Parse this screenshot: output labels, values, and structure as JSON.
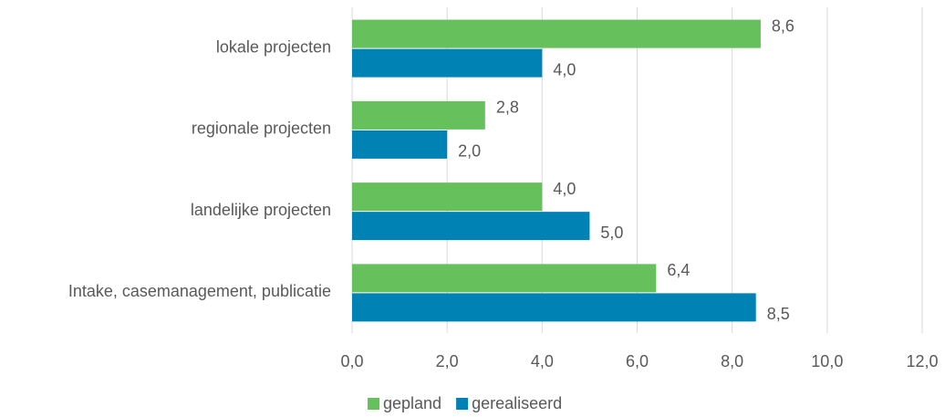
{
  "chart_data": {
    "type": "barh",
    "categories": [
      "lokale projecten",
      "regionale projecten",
      "landelijke projecten",
      "Intake, casemanagement, publicatie"
    ],
    "series": [
      {
        "name": "gepland",
        "color": "#66c15c",
        "values": [
          8.6,
          2.8,
          4.0,
          6.4
        ],
        "value_labels": [
          "8,6",
          "2,8",
          "4,0",
          "6,4"
        ]
      },
      {
        "name": "gerealiseerd",
        "color": "#0083b4",
        "values": [
          4.0,
          2.0,
          5.0,
          8.5
        ],
        "value_labels": [
          "4,0",
          "2,0",
          "5,0",
          "8,5"
        ]
      }
    ],
    "xlim": [
      0,
      12
    ],
    "xticks": [
      {
        "value": 0,
        "label": "0,0"
      },
      {
        "value": 2,
        "label": "2,0"
      },
      {
        "value": 4,
        "label": "4,0"
      },
      {
        "value": 6,
        "label": "6,0"
      },
      {
        "value": 8,
        "label": "8,0"
      },
      {
        "value": 10,
        "label": "10,0"
      },
      {
        "value": 12,
        "label": "12,0"
      }
    ],
    "grid": true,
    "legend": "bottom"
  }
}
